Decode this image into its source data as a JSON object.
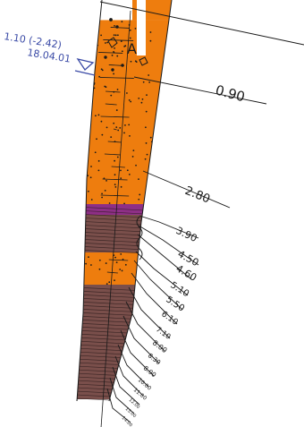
{
  "water_level": {
    "label": "1.10 (-2.42)",
    "date": "18.04.01"
  },
  "horizon_label": "A",
  "colors": {
    "sand": "#ee7d0e",
    "clay": "#7a4f4b",
    "purple": "#8e2f86",
    "topsoil_grey": "#b8b8b8",
    "line": "#1a1a1a",
    "water": "#3a4aa6"
  },
  "layers": [
    {
      "id": "topsoil",
      "top": 0.0,
      "bottom": 0.2,
      "type": "topsoil"
    },
    {
      "id": "fill",
      "top": 0.2,
      "bottom": 0.9,
      "type": "sand"
    },
    {
      "id": "sand-1",
      "top": 0.9,
      "bottom": 2.8,
      "type": "sand"
    },
    {
      "id": "sand-2",
      "top": 2.8,
      "bottom": 3.2,
      "type": "sand"
    },
    {
      "id": "purple",
      "top": 3.2,
      "bottom": 3.9,
      "type": "purple"
    },
    {
      "id": "clay-1",
      "top": 3.9,
      "bottom": 5.1,
      "type": "clay"
    },
    {
      "id": "sand-3",
      "top": 5.1,
      "bottom": 6.1,
      "type": "sand"
    },
    {
      "id": "clay-2",
      "top": 6.1,
      "bottom": 8.8,
      "type": "clay"
    }
  ],
  "depth_labels": [
    {
      "text": "0.90",
      "size": 15
    },
    {
      "text": "2.80",
      "size": 13
    },
    {
      "text": "3.90",
      "size": 11
    },
    {
      "text": "4.50",
      "size": 11
    },
    {
      "text": "4.60",
      "size": 11
    },
    {
      "text": "5.10",
      "size": 10
    },
    {
      "text": "5.50",
      "size": 10
    },
    {
      "text": "6.10",
      "size": 9
    },
    {
      "text": "7.10",
      "size": 8
    },
    {
      "text": "8.00",
      "size": 8
    },
    {
      "text": "8.30",
      "size": 7
    },
    {
      "text": "8.90",
      "size": 7
    },
    {
      "text": "10.00",
      "size": 6
    },
    {
      "text": "11.00",
      "size": 6
    },
    {
      "text": "12.00",
      "size": 5
    },
    {
      "text": "13.00",
      "size": 5
    },
    {
      "text": "14.00",
      "size": 5
    }
  ]
}
